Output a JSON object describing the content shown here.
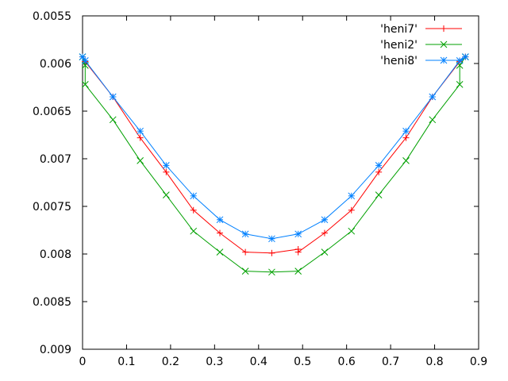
{
  "chart_data": {
    "type": "line",
    "title": "",
    "xlabel": "",
    "ylabel": "",
    "xlim": [
      0,
      0.9
    ],
    "ylim": [
      0.009,
      0.0055
    ],
    "y_axis_inverted": true,
    "grid": false,
    "legend": "top-right",
    "x_ticks": [
      "0",
      "0.1",
      "0.2",
      "0.3",
      "0.4",
      "0.5",
      "0.6",
      "0.7",
      "0.8",
      "0.9"
    ],
    "y_ticks": [
      "0.0055",
      "0.006",
      "0.0065",
      "0.007",
      "0.0075",
      "0.008",
      "0.0085",
      "0.009"
    ],
    "series": [
      {
        "name": "'heni7'",
        "color": "#ff0000",
        "marker": "plus",
        "x": [
          0.0,
          0.006,
          0.069,
          0.131,
          0.19,
          0.252,
          0.312,
          0.37,
          0.43,
          0.49,
          0.49,
          0.55,
          0.611,
          0.673,
          0.735,
          0.795,
          0.857,
          0.87
        ],
        "y": [
          0.00593,
          0.00598,
          0.00635,
          0.00678,
          0.00714,
          0.00754,
          0.00778,
          0.00798,
          0.00799,
          0.00795,
          0.00798,
          0.00778,
          0.00754,
          0.00714,
          0.00678,
          0.00635,
          0.00598,
          0.00593
        ]
      },
      {
        "name": "'heni2'",
        "color": "#00a000",
        "marker": "x",
        "x": [
          0.0,
          0.006,
          0.006,
          0.069,
          0.131,
          0.19,
          0.252,
          0.312,
          0.37,
          0.43,
          0.49,
          0.55,
          0.611,
          0.673,
          0.735,
          0.795,
          0.857,
          0.857,
          0.87
        ],
        "y": [
          0.00593,
          0.00602,
          0.00622,
          0.00659,
          0.00702,
          0.00738,
          0.00776,
          0.00798,
          0.00818,
          0.00819,
          0.00818,
          0.00798,
          0.00776,
          0.00738,
          0.00702,
          0.00659,
          0.00622,
          0.00602,
          0.00593
        ]
      },
      {
        "name": "'heni8'",
        "color": "#0080ff",
        "marker": "star",
        "x": [
          0.0,
          0.006,
          0.069,
          0.131,
          0.19,
          0.252,
          0.312,
          0.37,
          0.43,
          0.49,
          0.55,
          0.611,
          0.673,
          0.735,
          0.795,
          0.857,
          0.87
        ],
        "y": [
          0.00593,
          0.00597,
          0.00635,
          0.00671,
          0.00707,
          0.00739,
          0.00764,
          0.00779,
          0.00784,
          0.00779,
          0.00764,
          0.00739,
          0.00707,
          0.00671,
          0.00635,
          0.00597,
          0.00593
        ]
      }
    ]
  }
}
